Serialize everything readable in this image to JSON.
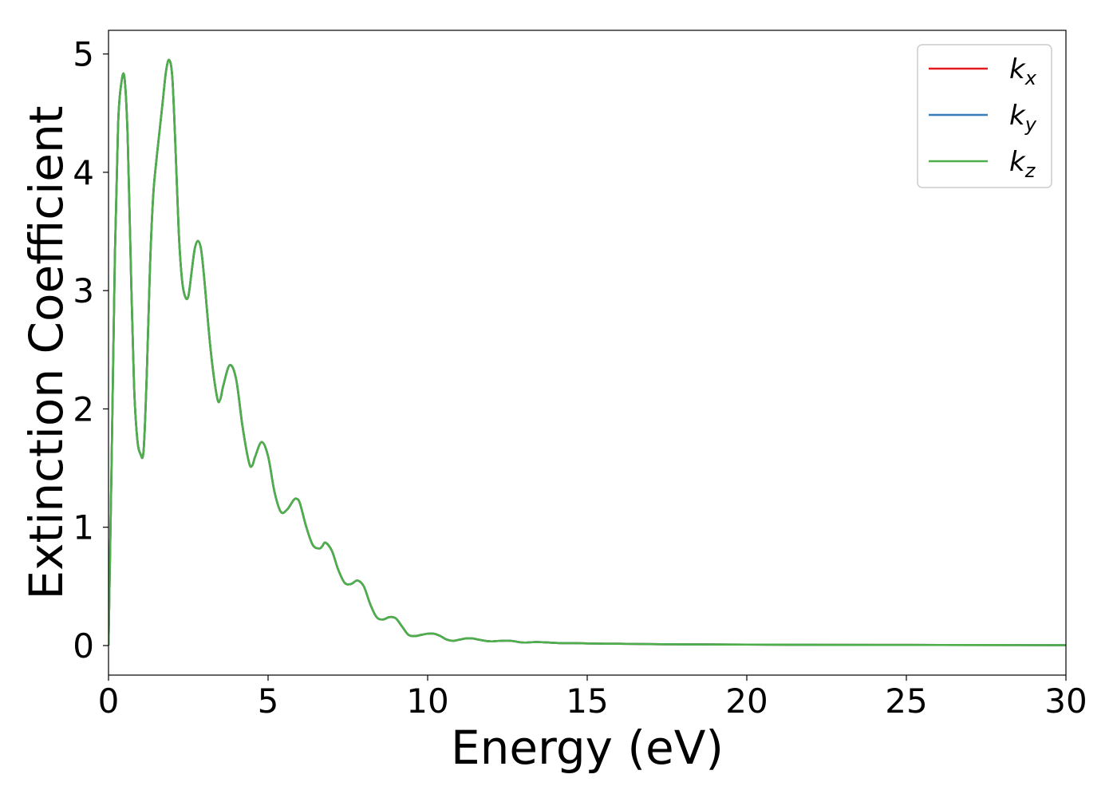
{
  "chart_data": {
    "type": "line",
    "title": "",
    "xlabel": "Energy (eV)",
    "ylabel": "Extinction Coefficient",
    "xlim": [
      0,
      30
    ],
    "ylim": [
      -0.25,
      5.2
    ],
    "xticks": [
      0,
      5,
      10,
      15,
      20,
      25,
      30
    ],
    "yticks": [
      0,
      1,
      2,
      3,
      4,
      5
    ],
    "grid": false,
    "legend_position": "top-right",
    "series": [
      {
        "name": "k_x",
        "label_base": "k",
        "label_sub": "x",
        "color": "#e41a1c",
        "x": [
          0,
          0.1,
          0.2,
          0.3,
          0.4,
          0.5,
          0.6,
          0.7,
          0.8,
          0.9,
          1.0,
          1.1,
          1.2,
          1.3,
          1.4,
          1.5,
          1.6,
          1.7,
          1.8,
          1.9,
          2.0,
          2.1,
          2.2,
          2.3,
          2.4,
          2.5,
          2.6,
          2.7,
          2.8,
          2.9,
          3.0,
          3.2,
          3.4,
          3.5,
          3.6,
          3.8,
          4.0,
          4.2,
          4.4,
          4.5,
          4.6,
          4.8,
          5.0,
          5.2,
          5.4,
          5.6,
          5.8,
          5.9,
          6.0,
          6.2,
          6.4,
          6.6,
          6.7,
          6.8,
          7.0,
          7.2,
          7.4,
          7.6,
          7.8,
          8.0,
          8.2,
          8.4,
          8.6,
          8.8,
          9.0,
          9.2,
          9.4,
          9.6,
          9.8,
          10.0,
          10.2,
          10.4,
          10.6,
          10.8,
          11.0,
          11.2,
          11.4,
          11.6,
          11.8,
          12.0,
          12.3,
          12.6,
          13.0,
          13.4,
          13.8,
          14.2,
          14.6,
          15.0,
          15.6,
          16.0,
          17.0,
          18.0,
          20.0,
          22.0,
          25.0,
          28.0,
          30.0
        ],
        "y": [
          0.0,
          1.6,
          3.3,
          4.4,
          4.75,
          4.8,
          4.3,
          3.2,
          2.2,
          1.75,
          1.62,
          1.65,
          2.3,
          3.2,
          3.8,
          4.1,
          4.35,
          4.6,
          4.85,
          4.95,
          4.8,
          4.2,
          3.5,
          3.1,
          2.95,
          2.95,
          3.15,
          3.35,
          3.42,
          3.35,
          3.1,
          2.5,
          2.1,
          2.08,
          2.2,
          2.37,
          2.25,
          1.85,
          1.55,
          1.52,
          1.6,
          1.72,
          1.6,
          1.3,
          1.13,
          1.15,
          1.23,
          1.24,
          1.2,
          1.0,
          0.85,
          0.82,
          0.84,
          0.87,
          0.8,
          0.64,
          0.53,
          0.52,
          0.55,
          0.5,
          0.35,
          0.24,
          0.22,
          0.24,
          0.23,
          0.16,
          0.09,
          0.08,
          0.09,
          0.1,
          0.1,
          0.08,
          0.05,
          0.04,
          0.05,
          0.06,
          0.06,
          0.05,
          0.04,
          0.035,
          0.04,
          0.04,
          0.025,
          0.03,
          0.025,
          0.02,
          0.02,
          0.018,
          0.015,
          0.015,
          0.012,
          0.01,
          0.008,
          0.006,
          0.005,
          0.004,
          0.003
        ]
      },
      {
        "name": "k_y",
        "label_base": "k",
        "label_sub": "y",
        "color": "#377eb8",
        "x": [
          0,
          0.1,
          0.2,
          0.3,
          0.4,
          0.5,
          0.6,
          0.7,
          0.8,
          0.9,
          1.0,
          1.1,
          1.2,
          1.3,
          1.4,
          1.5,
          1.6,
          1.7,
          1.8,
          1.9,
          2.0,
          2.1,
          2.2,
          2.3,
          2.4,
          2.5,
          2.6,
          2.7,
          2.8,
          2.9,
          3.0,
          3.2,
          3.4,
          3.5,
          3.6,
          3.8,
          4.0,
          4.2,
          4.4,
          4.5,
          4.6,
          4.8,
          5.0,
          5.2,
          5.4,
          5.6,
          5.8,
          5.9,
          6.0,
          6.2,
          6.4,
          6.6,
          6.7,
          6.8,
          7.0,
          7.2,
          7.4,
          7.6,
          7.8,
          8.0,
          8.2,
          8.4,
          8.6,
          8.8,
          9.0,
          9.2,
          9.4,
          9.6,
          9.8,
          10.0,
          10.2,
          10.4,
          10.6,
          10.8,
          11.0,
          11.2,
          11.4,
          11.6,
          11.8,
          12.0,
          12.3,
          12.6,
          13.0,
          13.4,
          13.8,
          14.2,
          14.6,
          15.0,
          15.6,
          16.0,
          17.0,
          18.0,
          20.0,
          22.0,
          25.0,
          28.0,
          30.0
        ],
        "y": [
          0.0,
          1.6,
          3.3,
          4.4,
          4.75,
          4.8,
          4.3,
          3.2,
          2.2,
          1.75,
          1.62,
          1.65,
          2.3,
          3.2,
          3.8,
          4.1,
          4.35,
          4.6,
          4.85,
          4.95,
          4.8,
          4.2,
          3.5,
          3.1,
          2.95,
          2.95,
          3.15,
          3.35,
          3.42,
          3.35,
          3.1,
          2.5,
          2.1,
          2.08,
          2.2,
          2.37,
          2.25,
          1.85,
          1.55,
          1.52,
          1.6,
          1.72,
          1.6,
          1.3,
          1.13,
          1.15,
          1.23,
          1.24,
          1.2,
          1.0,
          0.85,
          0.82,
          0.84,
          0.87,
          0.8,
          0.64,
          0.53,
          0.52,
          0.55,
          0.5,
          0.35,
          0.24,
          0.22,
          0.24,
          0.23,
          0.16,
          0.09,
          0.08,
          0.09,
          0.1,
          0.1,
          0.08,
          0.05,
          0.04,
          0.05,
          0.06,
          0.06,
          0.05,
          0.04,
          0.035,
          0.04,
          0.04,
          0.025,
          0.03,
          0.025,
          0.02,
          0.02,
          0.018,
          0.015,
          0.015,
          0.012,
          0.01,
          0.008,
          0.006,
          0.005,
          0.004,
          0.003
        ]
      },
      {
        "name": "k_z",
        "label_base": "k",
        "label_sub": "z",
        "color": "#4daf4a",
        "x": [
          0,
          0.1,
          0.2,
          0.3,
          0.4,
          0.5,
          0.6,
          0.7,
          0.8,
          0.9,
          1.0,
          1.1,
          1.2,
          1.3,
          1.4,
          1.5,
          1.6,
          1.7,
          1.8,
          1.9,
          2.0,
          2.1,
          2.2,
          2.3,
          2.4,
          2.5,
          2.6,
          2.7,
          2.8,
          2.9,
          3.0,
          3.2,
          3.4,
          3.5,
          3.6,
          3.8,
          4.0,
          4.2,
          4.4,
          4.5,
          4.6,
          4.8,
          5.0,
          5.2,
          5.4,
          5.6,
          5.8,
          5.9,
          6.0,
          6.2,
          6.4,
          6.6,
          6.7,
          6.8,
          7.0,
          7.2,
          7.4,
          7.6,
          7.8,
          8.0,
          8.2,
          8.4,
          8.6,
          8.8,
          9.0,
          9.2,
          9.4,
          9.6,
          9.8,
          10.0,
          10.2,
          10.4,
          10.6,
          10.8,
          11.0,
          11.2,
          11.4,
          11.6,
          11.8,
          12.0,
          12.3,
          12.6,
          13.0,
          13.4,
          13.8,
          14.2,
          14.6,
          15.0,
          15.6,
          16.0,
          17.0,
          18.0,
          20.0,
          22.0,
          25.0,
          28.0,
          30.0
        ],
        "y": [
          0.0,
          1.6,
          3.3,
          4.4,
          4.75,
          4.8,
          4.3,
          3.2,
          2.2,
          1.75,
          1.62,
          1.65,
          2.3,
          3.2,
          3.8,
          4.1,
          4.35,
          4.6,
          4.85,
          4.95,
          4.8,
          4.2,
          3.5,
          3.1,
          2.95,
          2.95,
          3.15,
          3.35,
          3.42,
          3.35,
          3.1,
          2.5,
          2.1,
          2.08,
          2.2,
          2.37,
          2.25,
          1.85,
          1.55,
          1.52,
          1.6,
          1.72,
          1.6,
          1.3,
          1.13,
          1.15,
          1.23,
          1.24,
          1.2,
          1.0,
          0.85,
          0.82,
          0.84,
          0.87,
          0.8,
          0.64,
          0.53,
          0.52,
          0.55,
          0.5,
          0.35,
          0.24,
          0.22,
          0.24,
          0.23,
          0.16,
          0.09,
          0.08,
          0.09,
          0.1,
          0.1,
          0.08,
          0.05,
          0.04,
          0.05,
          0.06,
          0.06,
          0.05,
          0.04,
          0.035,
          0.04,
          0.04,
          0.025,
          0.03,
          0.025,
          0.02,
          0.02,
          0.018,
          0.015,
          0.015,
          0.012,
          0.01,
          0.008,
          0.006,
          0.005,
          0.004,
          0.003
        ]
      }
    ]
  }
}
